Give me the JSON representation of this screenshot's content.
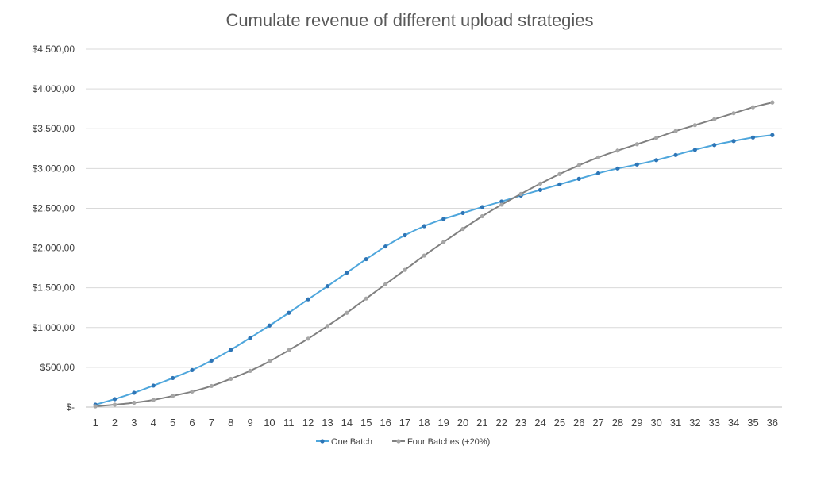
{
  "chart_data": {
    "type": "line",
    "title": "Cumulate revenue of different upload strategies",
    "xlabel": "",
    "ylabel": "",
    "x": [
      1,
      2,
      3,
      4,
      5,
      6,
      7,
      8,
      9,
      10,
      11,
      12,
      13,
      14,
      15,
      16,
      17,
      18,
      19,
      20,
      21,
      22,
      23,
      24,
      25,
      26,
      27,
      28,
      29,
      30,
      31,
      32,
      33,
      34,
      35,
      36
    ],
    "ylim": [
      0,
      4500
    ],
    "yticks": [
      0,
      500,
      1000,
      1500,
      2000,
      2500,
      3000,
      3500,
      4000,
      4500
    ],
    "ytick_labels": [
      "$-",
      "$500,00",
      "$1.000,00",
      "$1.500,00",
      "$2.000,00",
      "$2.500,00",
      "$3.000,00",
      "$3.500,00",
      "$4.000,00",
      "$4.500,00"
    ],
    "grid": true,
    "legend_position": "bottom",
    "series": [
      {
        "name": "One Batch",
        "color": "#4ea6dc",
        "marker_color": "#2e75b6",
        "values": [
          30,
          100,
          180,
          270,
          365,
          465,
          585,
          720,
          870,
          1025,
          1185,
          1355,
          1520,
          1690,
          1860,
          2020,
          2160,
          2275,
          2365,
          2440,
          2515,
          2585,
          2660,
          2730,
          2800,
          2870,
          2940,
          3000,
          3050,
          3105,
          3170,
          3235,
          3295,
          3345,
          3390,
          3420
        ]
      },
      {
        "name": "Four Batches (+20%)",
        "color": "#808080",
        "marker_color": "#a6a6a6",
        "values": [
          10,
          30,
          55,
          90,
          140,
          195,
          265,
          355,
          455,
          575,
          715,
          860,
          1020,
          1185,
          1365,
          1545,
          1725,
          1905,
          2075,
          2240,
          2400,
          2545,
          2680,
          2810,
          2930,
          3040,
          3140,
          3225,
          3305,
          3385,
          3470,
          3545,
          3620,
          3695,
          3770,
          3830
        ]
      }
    ]
  }
}
